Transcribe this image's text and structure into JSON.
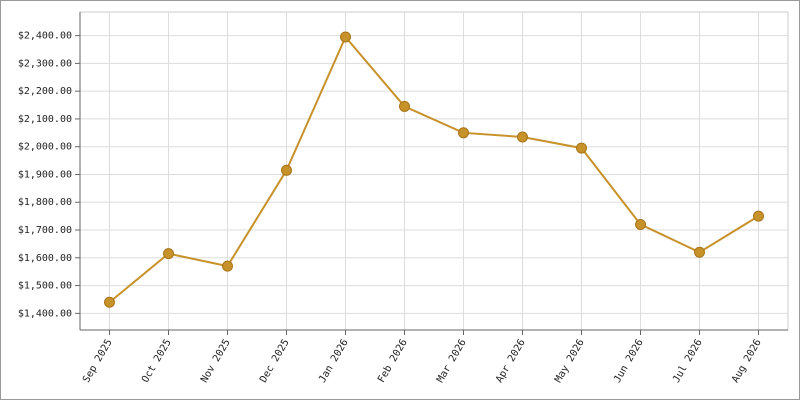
{
  "chart_data": {
    "type": "line",
    "categories": [
      "Sep 2025",
      "Oct 2025",
      "Nov 2025",
      "Dec 2025",
      "Jan 2026",
      "Feb 2026",
      "Mar 2026",
      "Apr 2026",
      "May 2026",
      "Jun 2026",
      "Jul 2026",
      "Aug 2026"
    ],
    "series": [
      {
        "color": "#c8922a",
        "values": [
          1440,
          1615,
          1570,
          1915,
          2395,
          2145,
          2050,
          2035,
          1995,
          1720,
          1620,
          1750
        ]
      }
    ],
    "ylim": [
      1340,
      2485
    ],
    "yticks": [
      {
        "value": 1400,
        "label": "$1,400.00"
      },
      {
        "value": 1500,
        "label": "$1,500.00"
      },
      {
        "value": 1600,
        "label": "$1,600.00"
      },
      {
        "value": 1700,
        "label": "$1,700.00"
      },
      {
        "value": 1800,
        "label": "$1,800.00"
      },
      {
        "value": 1900,
        "label": "$1,900.00"
      },
      {
        "value": 2000,
        "label": "$2,000.00"
      },
      {
        "value": 2100,
        "label": "$2,100.00"
      },
      {
        "value": 2200,
        "label": "$2,200.00"
      },
      {
        "value": 2300,
        "label": "$2,300.00"
      },
      {
        "value": 2400,
        "label": "$2,400.00"
      }
    ],
    "grid": true
  }
}
